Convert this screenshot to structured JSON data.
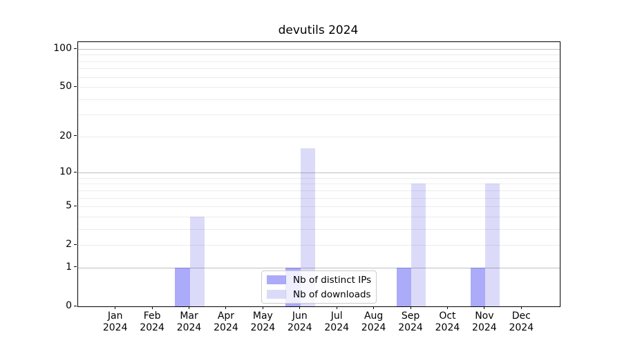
{
  "chart_data": {
    "type": "bar",
    "title": "devutils 2024",
    "categories": [
      "Jan",
      "Feb",
      "Mar",
      "Apr",
      "May",
      "Jun",
      "Jul",
      "Aug",
      "Sep",
      "Oct",
      "Nov",
      "Dec"
    ],
    "category_year": "2024",
    "series": [
      {
        "name": "Nb of distinct IPs",
        "values": [
          0,
          0,
          1,
          0,
          0,
          1,
          0,
          0,
          1,
          0,
          1,
          0
        ],
        "color": "rgba(0,0,240,0.33)",
        "color_hex": "#aaaaf9"
      },
      {
        "name": "Nb of downloads",
        "values": [
          0,
          0,
          4,
          0,
          0,
          16,
          0,
          0,
          8,
          0,
          8,
          0
        ],
        "color": "rgba(0,0,213,0.14)",
        "color_hex": "#dbdbf9"
      }
    ],
    "yscale": "log1p",
    "ylim": [
      0,
      113
    ],
    "y_ticks": [
      "0",
      "1",
      "2",
      "5",
      "10",
      "20",
      "50",
      "100"
    ],
    "y_major_grid": [
      1,
      10,
      100
    ],
    "y_minor_grid": [
      2,
      3,
      4,
      5,
      6,
      7,
      8,
      9,
      20,
      30,
      40,
      50,
      60,
      70,
      80,
      90
    ],
    "grid": true,
    "legend_position": "lower center inside",
    "colors": {
      "grid_major": "#bfbfbf",
      "grid_minor": "#ececec",
      "axis": "#000000",
      "background": "#ffffff"
    }
  }
}
